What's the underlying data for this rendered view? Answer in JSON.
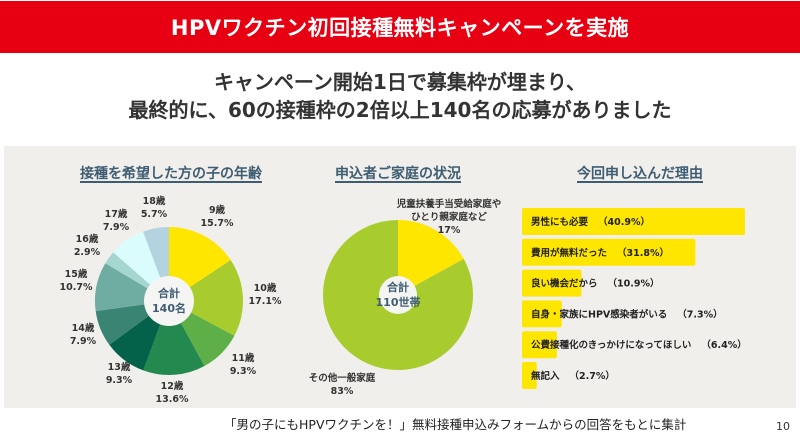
{
  "title": "HPVワクチン初回接種無料キャンペーンを実施",
  "headline": {
    "line1": "キャンペーン開始1日で募集枠が埋まり、",
    "line2": "最終的に、60の接種枠の2倍以上140名の応募がありました"
  },
  "footer": "「男の子にもHPVワクチンを！」無料接種申込みフォームからの回答をもとに集計",
  "page_number": "10",
  "chart_data": [
    {
      "type": "pie",
      "title": "接種を希望した方の子の年齢",
      "center_label": [
        "合計",
        "140名"
      ],
      "slices": [
        {
          "label": "9歳",
          "value": 15.7,
          "display": "15.7%",
          "color": "#ffe600"
        },
        {
          "label": "10歳",
          "value": 17.1,
          "display": "17.1%",
          "color": "#a8cc2e"
        },
        {
          "label": "11歳",
          "value": 9.3,
          "display": "9.3%",
          "color": "#5faf48"
        },
        {
          "label": "12歳",
          "value": 13.6,
          "display": "13.6%",
          "color": "#23894f"
        },
        {
          "label": "13歳",
          "value": 9.3,
          "display": "9.3%",
          "color": "#04624a"
        },
        {
          "label": "14歳",
          "value": 7.9,
          "display": "7.9%",
          "color": "#3a8474"
        },
        {
          "label": "15歳",
          "value": 10.7,
          "display": "10.7%",
          "color": "#6fada2"
        },
        {
          "label": "16歳",
          "value": 2.9,
          "display": "2.9%",
          "color": "#a5d6d0"
        },
        {
          "label": "17歳",
          "value": 7.9,
          "display": "7.9%",
          "color": "#dafcfc"
        },
        {
          "label": "18歳",
          "value": 5.7,
          "display": "5.7%",
          "color": "#b3d4de"
        }
      ]
    },
    {
      "type": "pie",
      "title": "申込者ご家庭の状況",
      "center_label": [
        "合計",
        "110世帯"
      ],
      "slices": [
        {
          "label": "児童扶養手当受給家庭や\nひとり親家庭など",
          "value": 17,
          "display": "17%",
          "color": "#ffe600"
        },
        {
          "label": "その他一般家庭",
          "value": 83,
          "display": "83%",
          "color": "#a8cc2e"
        }
      ]
    },
    {
      "type": "bar",
      "orientation": "horizontal",
      "title": "今回申し込んだ理由",
      "color": "#ffe600",
      "categories": [
        "男性にも必要",
        "費用が無料だった",
        "良い機会だから",
        "自身・家族にHPV感染者がいる",
        "公費接種化のきっかけになってほしい",
        "無記入"
      ],
      "values": [
        40.9,
        31.8,
        10.9,
        7.3,
        6.4,
        2.7
      ],
      "value_labels": [
        "（40.9%）",
        "（31.8%）",
        "（10.9%）",
        "（7.3%）",
        "（6.4%）",
        "（2.7%）"
      ]
    }
  ]
}
